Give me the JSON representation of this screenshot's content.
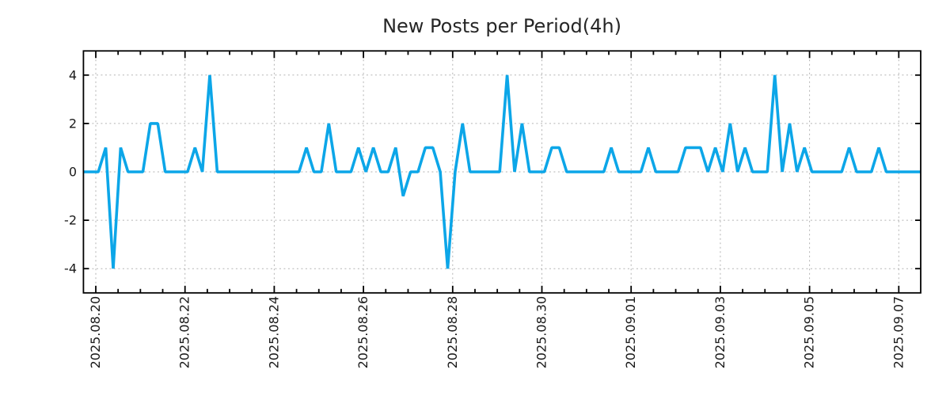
{
  "chart_data": {
    "type": "line",
    "title": "New Posts per Period(4h)",
    "point_interval": "4h",
    "x_tick_labels": [
      "2025.08.20",
      "2025.08.22",
      "2025.08.24",
      "2025.08.26",
      "2025.08.28",
      "2025.08.30",
      "2025.09.01",
      "2025.09.03",
      "2025.09.05",
      "2025.09.07"
    ],
    "x_major_tick_spacing": "2 days",
    "x_minor_ticks_per_major_gap": 3,
    "y_major_ticks": [
      -4,
      -2,
      0,
      2,
      4
    ],
    "ylim": [
      -5,
      5
    ],
    "grid": true,
    "legend": "none",
    "line_color": "#0ca6e8",
    "grid_color": "#b3b3b3",
    "axis_color": "#000000",
    "text_color": "#1a1a1a",
    "values": [
      0,
      0,
      0,
      1,
      -4,
      1,
      0,
      0,
      0,
      2,
      2,
      0,
      0,
      0,
      0,
      1,
      0,
      4,
      0,
      0,
      0,
      0,
      0,
      0,
      0,
      0,
      0,
      0,
      0,
      0,
      1,
      0,
      0,
      2,
      0,
      0,
      0,
      1,
      0,
      1,
      0,
      0,
      1,
      -1,
      0,
      0,
      1,
      1,
      0,
      -4,
      0,
      2,
      0,
      0,
      0,
      0,
      0,
      4,
      0,
      2,
      0,
      0,
      0,
      1,
      1,
      0,
      0,
      0,
      0,
      0,
      0,
      1,
      0,
      0,
      0,
      0,
      1,
      0,
      0,
      0,
      0,
      1,
      1,
      1,
      0,
      1,
      0,
      2,
      0,
      1,
      0,
      0,
      0,
      4,
      0,
      2,
      0,
      1,
      0,
      0,
      0,
      0,
      0,
      1,
      0,
      0,
      0,
      1,
      0,
      0,
      0,
      0,
      0,
      0
    ]
  }
}
